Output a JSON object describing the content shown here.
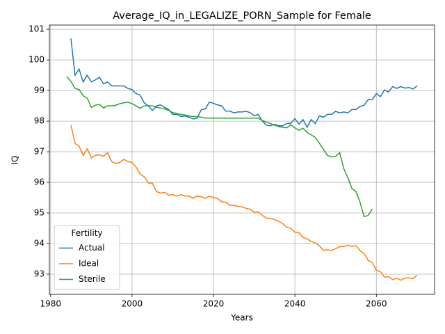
{
  "chart_data": {
    "type": "line",
    "title": "Average_IQ_in_LEGALIZE_PORN_Sample for Female",
    "x_label": "Years",
    "y_label": "IQ",
    "legend_title": "Fertility",
    "legend_position": "lower left",
    "grid": true,
    "xlim": [
      1979.7,
      2074.3
    ],
    "xticks": [
      1980,
      2000,
      2020,
      2040,
      2060
    ],
    "ylim": [
      92.34,
      101.14
    ],
    "yticks": [
      93,
      94,
      95,
      96,
      97,
      98,
      99,
      100,
      101
    ],
    "series": [
      {
        "name": "Actual",
        "color": "#1f77b4",
        "x": [
          1985,
          1986,
          1987,
          1988,
          1989,
          1990,
          1991,
          1992,
          1993,
          1994,
          1995,
          1996,
          1997,
          1998,
          1999,
          2000,
          2001,
          2002,
          2003,
          2004,
          2005,
          2006,
          2007,
          2008,
          2009,
          2010,
          2011,
          2012,
          2013,
          2014,
          2015,
          2016,
          2017,
          2018,
          2019,
          2020,
          2021,
          2022,
          2023,
          2024,
          2025,
          2026,
          2027,
          2028,
          2029,
          2030,
          2031,
          2032,
          2033,
          2034,
          2035,
          2036,
          2037,
          2038,
          2039,
          2040,
          2041,
          2042,
          2043,
          2044,
          2045,
          2046,
          2047,
          2048,
          2049,
          2050,
          2051,
          2052,
          2053,
          2054,
          2055,
          2056,
          2057,
          2058,
          2059,
          2060,
          2061,
          2062,
          2063,
          2064,
          2065,
          2066,
          2067,
          2068,
          2069,
          2070
        ],
        "values": [
          100.7,
          99.5,
          99.7,
          99.28,
          99.5,
          99.28,
          99.35,
          99.43,
          99.22,
          99.28,
          99.15,
          99.15,
          99.15,
          99.15,
          99.07,
          99.03,
          98.9,
          98.85,
          98.6,
          98.5,
          98.35,
          98.5,
          98.53,
          98.45,
          98.38,
          98.22,
          98.22,
          98.15,
          98.17,
          98.13,
          98.07,
          98.1,
          98.37,
          98.4,
          98.62,
          98.58,
          98.53,
          98.5,
          98.33,
          98.33,
          98.27,
          98.3,
          98.3,
          98.32,
          98.28,
          98.18,
          98.22,
          98.0,
          97.87,
          97.85,
          97.9,
          97.85,
          97.85,
          97.92,
          97.93,
          98.08,
          97.9,
          98.05,
          97.8,
          98.05,
          97.92,
          98.17,
          98.13,
          98.22,
          98.22,
          98.32,
          98.27,
          98.3,
          98.27,
          98.38,
          98.38,
          98.48,
          98.52,
          98.7,
          98.7,
          98.9,
          98.8,
          99.02,
          98.95,
          99.13,
          99.07,
          99.13,
          99.08,
          99.1,
          99.05,
          99.15
        ]
      },
      {
        "name": "Ideal",
        "color": "#ff7f0e",
        "x": [
          1985,
          1986,
          1987,
          1988,
          1989,
          1990,
          1991,
          1992,
          1993,
          1994,
          1995,
          1996,
          1997,
          1998,
          1999,
          2000,
          2001,
          2002,
          2003,
          2004,
          2005,
          2006,
          2007,
          2008,
          2009,
          2010,
          2011,
          2012,
          2013,
          2014,
          2015,
          2016,
          2017,
          2018,
          2019,
          2020,
          2021,
          2022,
          2023,
          2024,
          2025,
          2026,
          2027,
          2028,
          2029,
          2030,
          2031,
          2032,
          2033,
          2034,
          2035,
          2036,
          2037,
          2038,
          2039,
          2040,
          2041,
          2042,
          2043,
          2044,
          2045,
          2046,
          2047,
          2048,
          2049,
          2050,
          2051,
          2052,
          2053,
          2054,
          2055,
          2056,
          2057,
          2058,
          2059,
          2060,
          2061,
          2062,
          2063,
          2064,
          2065,
          2066,
          2067,
          2068,
          2069,
          2070
        ],
        "values": [
          97.87,
          97.27,
          97.18,
          96.88,
          97.1,
          96.8,
          96.88,
          96.9,
          96.85,
          96.97,
          96.68,
          96.62,
          96.65,
          96.75,
          96.68,
          96.65,
          96.5,
          96.27,
          96.18,
          95.98,
          95.97,
          95.7,
          95.65,
          95.67,
          95.58,
          95.6,
          95.55,
          95.6,
          95.55,
          95.55,
          95.48,
          95.55,
          95.53,
          95.48,
          95.55,
          95.5,
          95.47,
          95.37,
          95.35,
          95.25,
          95.25,
          95.22,
          95.2,
          95.15,
          95.12,
          95.02,
          95.03,
          94.92,
          94.83,
          94.82,
          94.78,
          94.73,
          94.65,
          94.53,
          94.5,
          94.37,
          94.35,
          94.2,
          94.15,
          94.07,
          94.02,
          93.93,
          93.78,
          93.8,
          93.77,
          93.83,
          93.9,
          93.9,
          93.95,
          93.9,
          93.93,
          93.77,
          93.67,
          93.45,
          93.38,
          93.13,
          93.08,
          92.9,
          92.92,
          92.82,
          92.87,
          92.8,
          92.87,
          92.88,
          92.85,
          92.97
        ]
      },
      {
        "name": "Sterile",
        "color": "#2ca02c",
        "x": [
          1984,
          1985,
          1986,
          1987,
          1988,
          1989,
          1990,
          1991,
          1992,
          1993,
          1994,
          1995,
          1996,
          1997,
          1998,
          1999,
          2000,
          2001,
          2002,
          2003,
          2004,
          2005,
          2006,
          2007,
          2008,
          2009,
          2010,
          2011,
          2012,
          2013,
          2014,
          2015,
          2016,
          2017,
          2018,
          2019,
          2020,
          2021,
          2022,
          2023,
          2024,
          2025,
          2026,
          2027,
          2028,
          2029,
          2030,
          2031,
          2032,
          2033,
          2034,
          2035,
          2036,
          2037,
          2038,
          2039,
          2040,
          2041,
          2042,
          2043,
          2044,
          2045,
          2046,
          2047,
          2048,
          2049,
          2050,
          2051,
          2052,
          2053,
          2054,
          2055,
          2056,
          2057,
          2058,
          2059
        ],
        "values": [
          99.45,
          99.3,
          99.07,
          99.03,
          98.83,
          98.75,
          98.45,
          98.52,
          98.55,
          98.43,
          98.5,
          98.5,
          98.52,
          98.57,
          98.6,
          98.62,
          98.57,
          98.5,
          98.42,
          98.5,
          98.5,
          98.5,
          98.45,
          98.43,
          98.4,
          98.35,
          98.28,
          98.25,
          98.22,
          98.2,
          98.17,
          98.15,
          98.15,
          98.13,
          98.1,
          98.1,
          98.1,
          98.1,
          98.1,
          98.1,
          98.1,
          98.1,
          98.1,
          98.1,
          98.1,
          98.1,
          98.1,
          98.1,
          98.02,
          97.97,
          97.92,
          97.87,
          97.82,
          97.8,
          97.78,
          97.88,
          97.78,
          97.7,
          97.77,
          97.63,
          97.55,
          97.47,
          97.28,
          97.08,
          96.88,
          96.83,
          96.85,
          96.97,
          96.45,
          96.15,
          95.8,
          95.7,
          95.35,
          94.88,
          94.92,
          95.13
        ]
      }
    ]
  }
}
